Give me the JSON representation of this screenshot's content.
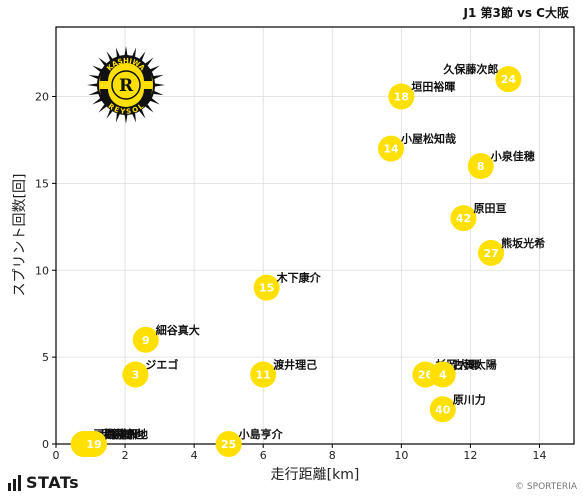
{
  "header": {
    "title": "J1 第3節 vs C大阪"
  },
  "footer": {
    "brand": "STATs",
    "credit": "© SPORTERIA"
  },
  "logo": {
    "icon": "kashiwa-reysol-crest",
    "top_text": "KASHIWA",
    "bottom_text": "REYSOL",
    "letter": "R"
  },
  "colors": {
    "marker": "#FFE000",
    "marker_text": "#ffffff",
    "axis": "#000000",
    "grid": "#dddddd"
  },
  "chart_data": {
    "type": "scatter",
    "xlabel": "走行距離[km]",
    "ylabel": "スプリント回数[回]",
    "xlim": [
      0,
      15
    ],
    "ylim": [
      0,
      24
    ],
    "xticks": [
      0,
      2,
      4,
      6,
      8,
      10,
      12,
      14
    ],
    "yticks": [
      0,
      5,
      10,
      15,
      20
    ],
    "grid": true,
    "points": [
      {
        "number": "24",
        "name": "久保藤次郎",
        "x": 13.1,
        "y": 21
      },
      {
        "number": "18",
        "name": "垣田裕暉",
        "x": 10.0,
        "y": 20
      },
      {
        "number": "14",
        "name": "小屋松知哉",
        "x": 9.7,
        "y": 17
      },
      {
        "number": "8",
        "name": "小泉佳穂",
        "x": 12.3,
        "y": 16
      },
      {
        "number": "42",
        "name": "原田亘",
        "x": 11.8,
        "y": 13
      },
      {
        "number": "27",
        "name": "熊坂光希",
        "x": 12.6,
        "y": 11
      },
      {
        "number": "15",
        "name": "木下康介",
        "x": 6.1,
        "y": 9
      },
      {
        "number": "9",
        "name": "細谷真大",
        "x": 2.6,
        "y": 6
      },
      {
        "number": "3",
        "name": "ジエゴ",
        "x": 2.3,
        "y": 4
      },
      {
        "number": "11",
        "name": "渡井理己",
        "x": 6.0,
        "y": 4
      },
      {
        "number": "26",
        "name": "杉岡大暉",
        "x": 10.7,
        "y": 4
      },
      {
        "number": "4",
        "name": "古賀太陽",
        "x": 11.2,
        "y": 4
      },
      {
        "number": "40",
        "name": "原川力",
        "x": 11.2,
        "y": 2
      },
      {
        "number": "25",
        "name": "小島亨介",
        "x": 5.0,
        "y": 0
      },
      {
        "number": "28",
        "name": "戸嶋祥郎",
        "x": 0.8,
        "y": 0
      },
      {
        "number": "38",
        "name": "手塚康平",
        "x": 0.9,
        "y": 0
      },
      {
        "number": "20",
        "name": "犬飼智也",
        "x": 1.0,
        "y": 0
      },
      {
        "number": "19",
        "name": "白井永地",
        "x": 1.1,
        "y": 0
      }
    ]
  }
}
